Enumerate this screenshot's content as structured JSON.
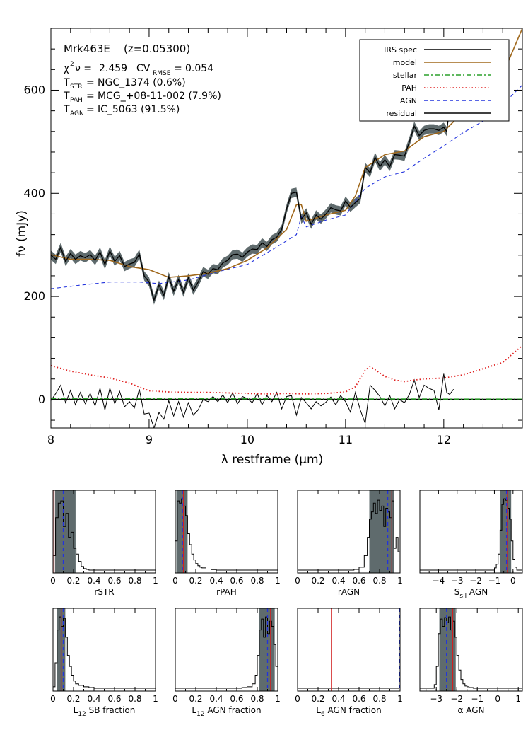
{
  "main": {
    "info": {
      "object": "Mrk463E",
      "redshift": "(z=0.05300)",
      "chi2_value": "2.459",
      "cv_value": "0.054",
      "t_str": "NGC_1374 (0.6%)",
      "t_pah": "MCG_+08-11-002 (7.9%)",
      "t_agn": "IC_5063 (91.5%)"
    },
    "legend": [
      {
        "label": "IRS spec",
        "color": "#000000",
        "dash": ""
      },
      {
        "label": "model",
        "color": "#a0681c",
        "dash": ""
      },
      {
        "label": "stellar",
        "color": "#2ca02c",
        "dash": "7,3,2,3"
      },
      {
        "label": "PAH",
        "color": "#e02020",
        "dash": "1.5,3"
      },
      {
        "label": "AGN",
        "color": "#2233dd",
        "dash": "5,4"
      },
      {
        "label": "residual",
        "color": "#000000",
        "dash": ""
      }
    ],
    "chart_data": {
      "type": "line",
      "xlabel": "λ restframe (μm)",
      "ylabel": "fν (mJy)",
      "xlim": [
        8.0,
        12.8
      ],
      "ylim": [
        -55,
        720
      ],
      "x_ticks": [
        8,
        9,
        10,
        11,
        12
      ],
      "y_ticks": [
        0,
        200,
        400,
        600
      ],
      "series": [
        {
          "name": "IRS spec",
          "color": "#000000",
          "x": [
            8.0,
            8.05,
            8.1,
            8.15,
            8.2,
            8.25,
            8.3,
            8.35,
            8.4,
            8.45,
            8.5,
            8.55,
            8.6,
            8.65,
            8.7,
            8.75,
            8.8,
            8.85,
            8.9,
            8.95,
            9.0,
            9.05,
            9.1,
            9.15,
            9.2,
            9.25,
            9.3,
            9.35,
            9.4,
            9.45,
            9.5,
            9.55,
            9.6,
            9.65,
            9.7,
            9.75,
            9.8,
            9.85,
            9.9,
            9.95,
            10.0,
            10.05,
            10.1,
            10.15,
            10.2,
            10.25,
            10.3,
            10.35,
            10.4,
            10.45,
            10.5,
            10.55,
            10.6,
            10.65,
            10.7,
            10.75,
            10.8,
            10.85,
            10.9,
            10.95,
            11.0,
            11.05,
            11.1,
            11.15,
            11.2,
            11.25,
            11.3,
            11.35,
            11.4,
            11.45,
            11.5,
            11.55,
            11.6,
            11.65,
            11.7,
            11.75,
            11.8,
            11.85,
            11.9,
            11.95,
            12.0,
            12.03,
            12.06,
            12.1
          ],
          "y": [
            280,
            272,
            295,
            268,
            283,
            272,
            279,
            275,
            281,
            270,
            286,
            262,
            288,
            268,
            279,
            258,
            263,
            266,
            282,
            240,
            228,
            193,
            222,
            202,
            238,
            210,
            233,
            208,
            236,
            212,
            228,
            248,
            243,
            254,
            252,
            265,
            270,
            281,
            282,
            276,
            286,
            292,
            291,
            304,
            297,
            310,
            315,
            330,
            370,
            400,
            402,
            350,
            362,
            340,
            358,
            350,
            360,
            372,
            368,
            366,
            385,
            373,
            382,
            390,
            450,
            440,
            470,
            452,
            465,
            452,
            475,
            474,
            472,
            500,
            530,
            512,
            522,
            525,
            525,
            522,
            528,
            520,
            570,
            600
          ]
        },
        {
          "name": "model",
          "color": "#a0681c",
          "x": [
            8.0,
            8.2,
            8.4,
            8.6,
            8.8,
            9.0,
            9.2,
            9.4,
            9.6,
            9.8,
            10.0,
            10.2,
            10.4,
            10.5,
            10.55,
            10.6,
            10.8,
            11.0,
            11.1,
            11.2,
            11.4,
            11.6,
            11.8,
            12.0,
            12.2,
            12.4,
            12.6,
            12.8
          ],
          "y": [
            281,
            272,
            272,
            270,
            258,
            252,
            237,
            240,
            245,
            254,
            270,
            294,
            330,
            378,
            378,
            346,
            358,
            367,
            395,
            450,
            475,
            482,
            510,
            520,
            558,
            583,
            630,
            720
          ]
        },
        {
          "name": "stellar",
          "color": "#2ca02c",
          "x": [
            8.0,
            12.8
          ],
          "y": [
            2,
            1
          ]
        },
        {
          "name": "PAH",
          "color": "#e02020",
          "x": [
            8.0,
            8.2,
            8.4,
            8.6,
            8.8,
            9.0,
            9.2,
            9.4,
            9.6,
            9.8,
            10.0,
            10.2,
            10.4,
            10.6,
            10.8,
            11.0,
            11.1,
            11.2,
            11.25,
            11.3,
            11.4,
            11.5,
            11.6,
            11.7,
            11.8,
            12.0,
            12.2,
            12.4,
            12.6,
            12.8
          ],
          "y": [
            66,
            55,
            48,
            42,
            32,
            17,
            15,
            14,
            14,
            13,
            12,
            11,
            12,
            11,
            12,
            15,
            25,
            57,
            64,
            58,
            45,
            38,
            35,
            38,
            40,
            42,
            48,
            60,
            72,
            105
          ]
        },
        {
          "name": "AGN",
          "color": "#2233dd",
          "x": [
            8.0,
            8.3,
            8.6,
            8.9,
            9.1,
            9.4,
            9.7,
            10.0,
            10.3,
            10.5,
            10.55,
            10.6,
            10.8,
            11.0,
            11.2,
            11.4,
            11.6,
            11.8,
            12.0,
            12.2,
            12.4,
            12.6,
            12.8
          ],
          "y": [
            215,
            222,
            228,
            228,
            225,
            232,
            248,
            262,
            296,
            320,
            355,
            335,
            348,
            358,
            410,
            432,
            442,
            468,
            492,
            518,
            540,
            572,
            610
          ]
        },
        {
          "name": "residual",
          "color": "#000000",
          "x": [
            8.0,
            8.05,
            8.1,
            8.15,
            8.2,
            8.25,
            8.3,
            8.35,
            8.4,
            8.45,
            8.5,
            8.55,
            8.6,
            8.65,
            8.7,
            8.75,
            8.8,
            8.85,
            8.9,
            8.95,
            9.0,
            9.05,
            9.1,
            9.15,
            9.2,
            9.25,
            9.3,
            9.35,
            9.4,
            9.45,
            9.5,
            9.55,
            9.6,
            9.65,
            9.7,
            9.75,
            9.8,
            9.85,
            9.9,
            9.95,
            10.0,
            10.05,
            10.1,
            10.15,
            10.2,
            10.25,
            10.3,
            10.35,
            10.4,
            10.45,
            10.5,
            10.55,
            10.6,
            10.65,
            10.7,
            10.75,
            10.8,
            10.85,
            10.9,
            10.95,
            11.0,
            11.05,
            11.1,
            11.15,
            11.2,
            11.25,
            11.3,
            11.35,
            11.4,
            11.45,
            11.5,
            11.55,
            11.6,
            11.65,
            11.7,
            11.75,
            11.8,
            11.85,
            11.9,
            11.95,
            12.0,
            12.03,
            12.06,
            12.1
          ],
          "y": [
            -2,
            12,
            28,
            -6,
            18,
            -10,
            14,
            -8,
            12,
            -12,
            22,
            -20,
            22,
            -8,
            16,
            -14,
            -4,
            -16,
            20,
            -28,
            -26,
            -55,
            -25,
            -38,
            -2,
            -32,
            -4,
            -34,
            -6,
            -30,
            -20,
            0,
            -4,
            6,
            -4,
            9,
            -6,
            13,
            -8,
            6,
            2,
            -6,
            12,
            -10,
            8,
            -4,
            14,
            -18,
            6,
            8,
            -30,
            4,
            -6,
            -18,
            -4,
            -12,
            -5,
            5,
            -10,
            8,
            -4,
            -24,
            14,
            -20,
            -46,
            28,
            18,
            6,
            -12,
            8,
            -18,
            0,
            -6,
            10,
            38,
            4,
            28,
            22,
            18,
            -20,
            50,
            14,
            10,
            20
          ]
        }
      ]
    }
  },
  "panels": [
    {
      "xlabel": "rSTR",
      "chart_data": {
        "type": "line",
        "xlim": [
          0,
          1
        ],
        "ticks": [
          "0",
          "0.2",
          "0.4",
          "0.6",
          "0.8",
          "1"
        ],
        "tick_values": [
          0,
          0.2,
          0.4,
          0.6,
          0.8,
          1
        ],
        "band": [
          0.02,
          0.22
        ],
        "median": 0.1,
        "best": 0.01,
        "hist_x": [
          0.0,
          0.025,
          0.05,
          0.075,
          0.1,
          0.125,
          0.15,
          0.175,
          0.2,
          0.225,
          0.25,
          0.275,
          0.3,
          0.325,
          0.35,
          0.4,
          0.5,
          0.6,
          0.7,
          0.8,
          0.9,
          1.0
        ],
        "hist_y": [
          0.2,
          0.72,
          0.92,
          0.95,
          0.6,
          0.78,
          0.45,
          0.52,
          0.3,
          0.22,
          0.12,
          0.05,
          0.02,
          0.01,
          0,
          0,
          0,
          0,
          0,
          0,
          0,
          0
        ]
      }
    },
    {
      "xlabel": "rPAH",
      "chart_data": {
        "type": "line",
        "xlim": [
          0,
          1
        ],
        "ticks": [
          "0",
          "0.2",
          "0.4",
          "0.6",
          "0.8",
          "1"
        ],
        "tick_values": [
          0,
          0.2,
          0.4,
          0.6,
          0.8,
          1
        ],
        "band": [
          0.01,
          0.12
        ],
        "median": 0.07,
        "best": 0.08,
        "hist_x": [
          0.0,
          0.02,
          0.04,
          0.06,
          0.08,
          0.1,
          0.12,
          0.14,
          0.16,
          0.18,
          0.2,
          0.22,
          0.24,
          0.26,
          0.3,
          0.35,
          0.4,
          0.5,
          0.6,
          0.8,
          1.0
        ],
        "hist_y": [
          0.4,
          0.95,
          0.92,
          0.98,
          0.88,
          0.75,
          0.5,
          0.35,
          0.22,
          0.14,
          0.09,
          0.06,
          0.04,
          0.03,
          0.015,
          0.008,
          0,
          0,
          0,
          0,
          0
        ]
      }
    },
    {
      "xlabel": "rAGN",
      "chart_data": {
        "type": "line",
        "xlim": [
          0,
          1
        ],
        "ticks": [
          "0",
          "0.2",
          "0.4",
          "0.6",
          "0.8",
          "1"
        ],
        "tick_values": [
          0,
          0.2,
          0.4,
          0.6,
          0.8,
          1
        ],
        "band": [
          0.7,
          0.94
        ],
        "median": 0.88,
        "best": 0.92,
        "hist_x": [
          0.0,
          0.5,
          0.55,
          0.6,
          0.65,
          0.68,
          0.7,
          0.72,
          0.74,
          0.76,
          0.78,
          0.8,
          0.82,
          0.84,
          0.86,
          0.88,
          0.9,
          0.92,
          0.94,
          0.96,
          0.98,
          1.0
        ],
        "hist_y": [
          0,
          0,
          0.01,
          0.04,
          0.2,
          0.45,
          0.7,
          0.8,
          0.92,
          0.78,
          0.96,
          0.82,
          0.88,
          0.6,
          0.85,
          0.8,
          0.72,
          0.95,
          0.3,
          0.45,
          0.25,
          0
        ]
      }
    },
    {
      "xlabel": "S_sil AGN",
      "chart_data": {
        "type": "line",
        "xlim": [
          -5,
          0.5
        ],
        "ticks": [
          "−4",
          "−3",
          "−2",
          "−1",
          "0"
        ],
        "tick_values": [
          -4,
          -3,
          -2,
          -1,
          0
        ],
        "band": [
          -0.7,
          -0.1
        ],
        "median": -0.35,
        "best": -0.3,
        "hist_x": [
          -5,
          -1.2,
          -1.0,
          -0.9,
          -0.8,
          -0.7,
          -0.6,
          -0.5,
          -0.4,
          -0.3,
          -0.2,
          -0.1,
          0.0,
          0.1,
          0.2,
          0.5
        ],
        "hist_y": [
          0,
          0,
          0.03,
          0.08,
          0.22,
          0.55,
          0.9,
          0.98,
          0.96,
          0.85,
          0.7,
          0.4,
          0.15,
          0.04,
          0,
          0
        ]
      }
    },
    {
      "xlabel": "L_12 SB fraction",
      "chart_data": {
        "type": "line",
        "xlim": [
          0,
          1
        ],
        "ticks": [
          "0",
          "0.2",
          "0.4",
          "0.6",
          "0.8",
          "1"
        ],
        "tick_values": [
          0,
          0.2,
          0.4,
          0.6,
          0.8,
          1
        ],
        "band": [
          0.04,
          0.12
        ],
        "median": 0.1,
        "best": 0.08,
        "hist_x": [
          0.0,
          0.02,
          0.04,
          0.06,
          0.08,
          0.1,
          0.12,
          0.14,
          0.16,
          0.18,
          0.2,
          0.22,
          0.25,
          0.3,
          0.35,
          0.4,
          0.5,
          0.6,
          0.8,
          1.0
        ],
        "hist_y": [
          0.02,
          0.35,
          0.8,
          0.98,
          0.85,
          0.96,
          0.7,
          0.45,
          0.3,
          0.18,
          0.1,
          0.06,
          0.04,
          0.02,
          0.01,
          0,
          0,
          0,
          0,
          0
        ]
      }
    },
    {
      "xlabel": "L_12 AGN fraction",
      "chart_data": {
        "type": "line",
        "xlim": [
          0,
          1
        ],
        "ticks": [
          "0",
          "0.2",
          "0.4",
          "0.6",
          "0.8",
          "1"
        ],
        "tick_values": [
          0,
          0.2,
          0.4,
          0.6,
          0.8,
          1
        ],
        "band": [
          0.82,
          0.97
        ],
        "median": 0.9,
        "best": 0.93,
        "hist_x": [
          0.0,
          0.6,
          0.65,
          0.7,
          0.75,
          0.78,
          0.8,
          0.82,
          0.84,
          0.86,
          0.88,
          0.9,
          0.92,
          0.94,
          0.96,
          0.98,
          1.0
        ],
        "hist_y": [
          0,
          0,
          0.01,
          0.02,
          0.06,
          0.18,
          0.45,
          0.8,
          0.95,
          0.7,
          0.98,
          0.75,
          0.92,
          0.85,
          0.6,
          0.3,
          0
        ]
      }
    },
    {
      "xlabel": "L_6 AGN fraction",
      "chart_data": {
        "type": "line",
        "xlim": [
          0,
          1
        ],
        "ticks": [
          "0",
          "0.2",
          "0.4",
          "0.6",
          "0.8",
          "1"
        ],
        "tick_values": [
          0,
          0.2,
          0.4,
          0.6,
          0.8,
          1
        ],
        "band": null,
        "median": 0.995,
        "best": 0.33,
        "hist_x": [
          0.0,
          0.98,
          0.99,
          1.0
        ],
        "hist_y": [
          0,
          0,
          1.0,
          1.0
        ]
      }
    },
    {
      "xlabel": "α AGN",
      "chart_data": {
        "type": "line",
        "xlim": [
          -3.8,
          1.2
        ],
        "ticks": [
          "−3",
          "−2",
          "−1",
          "0",
          "1"
        ],
        "tick_values": [
          -3,
          -2,
          -1,
          0,
          1
        ],
        "band": [
          -2.85,
          -2.05
        ],
        "median": -2.5,
        "best": -2.2,
        "hist_x": [
          -3.8,
          -3.2,
          -3.1,
          -3.0,
          -2.9,
          -2.8,
          -2.7,
          -2.6,
          -2.5,
          -2.4,
          -2.3,
          -2.2,
          -2.1,
          -2.0,
          -1.9,
          -1.8,
          -1.7,
          -1.6,
          -1.5,
          -1.4,
          -1.2,
          -1.0,
          1.2
        ],
        "hist_y": [
          0,
          0,
          0.05,
          0.3,
          0.75,
          0.95,
          0.85,
          0.97,
          0.9,
          0.98,
          0.8,
          0.92,
          0.7,
          0.45,
          0.25,
          0.12,
          0.06,
          0.03,
          0.02,
          0.01,
          0,
          0,
          0
        ]
      }
    }
  ]
}
